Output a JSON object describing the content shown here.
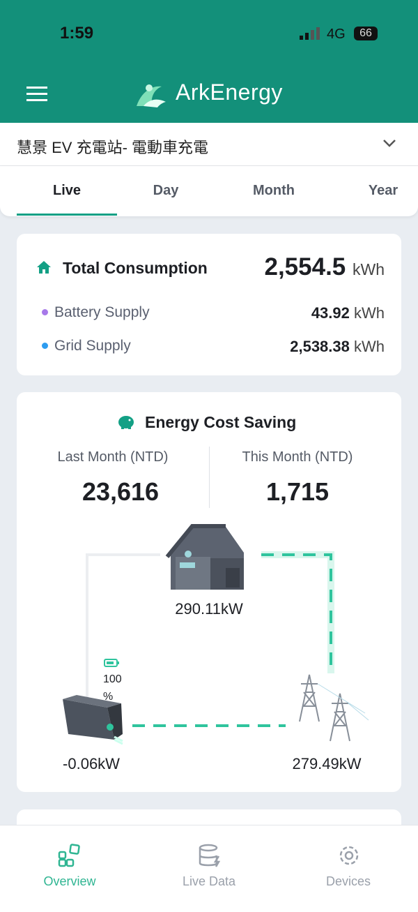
{
  "status_bar": {
    "time": "1:59",
    "network": "4G",
    "battery": "66"
  },
  "header": {
    "title": "ArkEnergy"
  },
  "site_selector": {
    "label": "慧景 EV 充電站- 電動車充電"
  },
  "tabs": [
    "Live",
    "Day",
    "Month",
    "Year"
  ],
  "consumption_card": {
    "title": "Total Consumption",
    "total": "2,554.5",
    "total_unit": "kWh",
    "rows": [
      {
        "label": "Battery Supply",
        "value": "43.92",
        "unit": "kWh"
      },
      {
        "label": "Grid Supply",
        "value": "2,538.38",
        "unit": "kWh"
      }
    ]
  },
  "saving_card": {
    "title": "Energy Cost Saving",
    "last_month_label": "Last Month (NTD)",
    "last_month_value": "23,616",
    "this_month_label": "This Month (NTD)",
    "this_month_value": "1,715",
    "flow": {
      "house_power": "290.11kW",
      "battery_level": "100",
      "battery_level_unit": "%",
      "battery_power": "-0.06kW",
      "grid_power": "279.49kW"
    }
  },
  "bottom_nav": [
    "Overview",
    "Live Data",
    "Devices"
  ]
}
